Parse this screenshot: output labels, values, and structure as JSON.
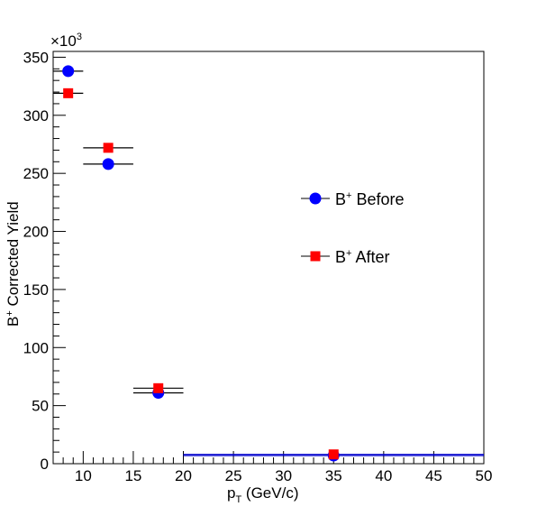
{
  "chart_data": {
    "type": "scatter",
    "title": "",
    "xlabel": "p_T (GeV/c)",
    "xlabel_main": "p",
    "xlabel_sub": "T",
    "xlabel_rest": " (GeV/c)",
    "ylabel": "B+ Corrected Yield",
    "ylabel_main": "B",
    "ylabel_sup": "+",
    "ylabel_rest": " Corrected Yield",
    "y_multiplier": "×10",
    "y_multiplier_exp": "3",
    "xlim": [
      7,
      50
    ],
    "ylim": [
      0,
      355
    ],
    "x_ticks": [
      10,
      15,
      20,
      25,
      30,
      35,
      40,
      45,
      50
    ],
    "y_ticks": [
      0,
      50,
      100,
      150,
      200,
      250,
      300,
      350
    ],
    "grid": false,
    "legend_position": "right",
    "series": [
      {
        "name": "B+ Before",
        "name_main": "B",
        "name_sup": "+",
        "name_rest": " Before",
        "marker": "circle",
        "color": "#0000ff",
        "points": [
          {
            "x": 8.5,
            "x_low": 7,
            "x_high": 10,
            "y": 338
          },
          {
            "x": 12.5,
            "x_low": 10,
            "x_high": 15,
            "y": 258
          },
          {
            "x": 17.5,
            "x_low": 15,
            "x_high": 20,
            "y": 61
          },
          {
            "x": 35,
            "x_low": 20,
            "x_high": 50,
            "y": 7
          }
        ]
      },
      {
        "name": "B+ After",
        "name_main": "B",
        "name_sup": "+",
        "name_rest": " After",
        "marker": "square",
        "color": "#ff0000",
        "points": [
          {
            "x": 8.5,
            "x_low": 7,
            "x_high": 10,
            "y": 319
          },
          {
            "x": 12.5,
            "x_low": 10,
            "x_high": 15,
            "y": 272
          },
          {
            "x": 17.5,
            "x_low": 15,
            "x_high": 20,
            "y": 65
          },
          {
            "x": 35,
            "x_low": 20,
            "x_high": 50,
            "y": 8
          }
        ]
      }
    ]
  }
}
